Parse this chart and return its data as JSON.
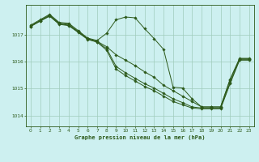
{
  "title": "Graphe pression niveau de la mer (hPa)",
  "background_color": "#cdf0f0",
  "plot_bg_color": "#cdf0f0",
  "line_color": "#2d5a1b",
  "grid_color": "#a0ccbb",
  "x_min": -0.5,
  "x_max": 23.5,
  "y_min": 1013.6,
  "y_max": 1018.1,
  "yticks": [
    1014,
    1015,
    1016,
    1017
  ],
  "xticks": [
    0,
    1,
    2,
    3,
    4,
    5,
    6,
    7,
    8,
    9,
    10,
    11,
    12,
    13,
    14,
    15,
    16,
    17,
    18,
    19,
    20,
    21,
    22,
    23
  ],
  "series": [
    {
      "x": [
        0,
        1,
        2,
        3,
        4,
        5,
        6,
        7,
        8,
        9,
        10,
        11,
        12,
        13,
        14,
        15,
        16,
        17,
        18,
        19,
        20,
        21,
        22,
        23
      ],
      "y": [
        1017.35,
        1017.55,
        1017.75,
        1017.45,
        1017.42,
        1017.15,
        1016.87,
        1016.78,
        1017.05,
        1017.55,
        1017.65,
        1017.62,
        1017.22,
        1016.85,
        1016.45,
        1015.05,
        1015.02,
        1014.62,
        1014.32,
        1014.32,
        1014.32,
        1015.35,
        1016.12,
        1016.12
      ]
    },
    {
      "x": [
        0,
        1,
        2,
        3,
        4,
        5,
        6,
        7,
        8,
        9,
        10,
        11,
        12,
        13,
        14,
        15,
        16,
        17,
        18,
        19,
        20,
        21,
        22,
        23
      ],
      "y": [
        1017.32,
        1017.52,
        1017.72,
        1017.42,
        1017.38,
        1017.12,
        1016.85,
        1016.75,
        1016.55,
        1016.25,
        1016.05,
        1015.85,
        1015.62,
        1015.42,
        1015.12,
        1014.92,
        1014.72,
        1014.52,
        1014.32,
        1014.32,
        1014.32,
        1015.32,
        1016.1,
        1016.1
      ]
    },
    {
      "x": [
        0,
        1,
        2,
        3,
        4,
        5,
        6,
        7,
        8,
        9,
        10,
        11,
        12,
        13,
        14,
        15,
        16,
        17,
        18,
        19,
        20,
        21,
        22,
        23
      ],
      "y": [
        1017.3,
        1017.5,
        1017.7,
        1017.4,
        1017.35,
        1017.1,
        1016.83,
        1016.73,
        1016.48,
        1015.82,
        1015.58,
        1015.38,
        1015.18,
        1015.02,
        1014.82,
        1014.62,
        1014.48,
        1014.32,
        1014.28,
        1014.28,
        1014.28,
        1015.22,
        1016.08,
        1016.08
      ]
    },
    {
      "x": [
        0,
        1,
        2,
        3,
        4,
        5,
        6,
        7,
        8,
        9,
        10,
        11,
        12,
        13,
        14,
        15,
        16,
        17,
        18,
        19,
        20,
        21,
        22,
        23
      ],
      "y": [
        1017.3,
        1017.5,
        1017.68,
        1017.38,
        1017.33,
        1017.08,
        1016.82,
        1016.72,
        1016.42,
        1015.72,
        1015.48,
        1015.28,
        1015.08,
        1014.92,
        1014.72,
        1014.52,
        1014.4,
        1014.28,
        1014.25,
        1014.25,
        1014.25,
        1015.18,
        1016.05,
        1016.05
      ]
    }
  ]
}
